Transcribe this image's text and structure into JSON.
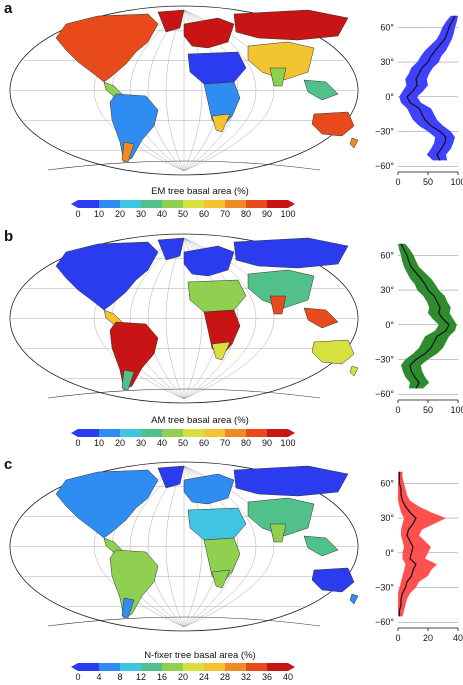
{
  "panels": [
    {
      "letter": "a",
      "colorbar_title": "EM tree basal area (%)",
      "colorbar_ticks": [
        "0",
        "10",
        "20",
        "30",
        "40",
        "50",
        "60",
        "70",
        "80",
        "90",
        "100"
      ],
      "profile_y_ticks": [
        "60°",
        "30°",
        "0°",
        "−30°",
        "−60°"
      ],
      "profile_x_ticks": [
        "0",
        "50",
        "100"
      ],
      "profile_fill_color": "#4040ff",
      "profile_xmax": 100,
      "profile_data": {
        "lat": [
          70,
          65,
          60,
          55,
          50,
          45,
          40,
          35,
          30,
          25,
          20,
          15,
          10,
          5,
          0,
          -5,
          -10,
          -15,
          -20,
          -25,
          -30,
          -35,
          -40,
          -45,
          -50,
          -55
        ],
        "mean": [
          95,
          90,
          85,
          82,
          78,
          70,
          62,
          55,
          50,
          40,
          35,
          30,
          32,
          25,
          15,
          20,
          35,
          40,
          45,
          55,
          70,
          80,
          78,
          72,
          65,
          70
        ],
        "low": [
          88,
          80,
          74,
          70,
          65,
          55,
          45,
          38,
          32,
          22,
          18,
          12,
          14,
          8,
          2,
          5,
          15,
          20,
          25,
          35,
          50,
          62,
          60,
          55,
          48,
          58
        ],
        "high": [
          100,
          98,
          95,
          93,
          90,
          85,
          80,
          72,
          68,
          58,
          52,
          48,
          50,
          42,
          32,
          38,
          55,
          60,
          65,
          75,
          88,
          95,
          92,
          88,
          80,
          82
        ]
      }
    },
    {
      "letter": "b",
      "colorbar_title": "AM tree basal area (%)",
      "colorbar_ticks": [
        "0",
        "10",
        "20",
        "30",
        "40",
        "50",
        "60",
        "70",
        "80",
        "90",
        "100"
      ],
      "profile_y_ticks": [
        "60°",
        "30°",
        "0°",
        "−30°",
        "−60°"
      ],
      "profile_x_ticks": [
        "0",
        "50",
        "100"
      ],
      "profile_fill_color": "#2e8b2e",
      "profile_xmax": 100,
      "profile_data": {
        "lat": [
          70,
          65,
          60,
          55,
          50,
          45,
          40,
          35,
          30,
          25,
          20,
          15,
          10,
          5,
          0,
          -5,
          -10,
          -15,
          -20,
          -25,
          -30,
          -35,
          -40,
          -45,
          -50,
          -55
        ],
        "mean": [
          5,
          10,
          15,
          18,
          22,
          30,
          38,
          45,
          50,
          60,
          65,
          70,
          68,
          75,
          85,
          80,
          65,
          60,
          55,
          45,
          30,
          20,
          22,
          28,
          35,
          30
        ],
        "low": [
          0,
          2,
          5,
          7,
          10,
          15,
          20,
          28,
          32,
          42,
          48,
          52,
          50,
          58,
          68,
          62,
          45,
          40,
          35,
          25,
          12,
          5,
          8,
          12,
          20,
          18
        ],
        "high": [
          12,
          20,
          26,
          30,
          35,
          45,
          55,
          62,
          68,
          78,
          82,
          88,
          86,
          92,
          98,
          95,
          85,
          80,
          75,
          65,
          50,
          38,
          40,
          45,
          52,
          42
        ]
      }
    },
    {
      "letter": "c",
      "colorbar_title": "N-fixer tree basal area (%)",
      "colorbar_ticks": [
        "0",
        "4",
        "8",
        "12",
        "16",
        "20",
        "24",
        "28",
        "32",
        "36",
        "40"
      ],
      "profile_y_ticks": [
        "60°",
        "30°",
        "0°",
        "−30°",
        "−60°"
      ],
      "profile_x_ticks": [
        "0",
        "20",
        "40"
      ],
      "profile_fill_color": "#ff5050",
      "profile_xmax": 40,
      "profile_data": {
        "lat": [
          70,
          65,
          60,
          55,
          50,
          45,
          40,
          35,
          30,
          25,
          20,
          15,
          10,
          5,
          0,
          -5,
          -10,
          -15,
          -20,
          -25,
          -30,
          -35,
          -40,
          -45,
          -50,
          -55
        ],
        "mean": [
          1,
          1,
          1,
          2,
          2,
          3,
          5,
          8,
          12,
          10,
          7,
          6,
          8,
          10,
          9,
          8,
          12,
          10,
          9,
          6,
          5,
          3,
          2,
          2,
          1,
          1
        ],
        "low": [
          0,
          0,
          0,
          0,
          0,
          0,
          1,
          2,
          4,
          3,
          2,
          2,
          3,
          4,
          3,
          3,
          5,
          4,
          3,
          2,
          1,
          0,
          0,
          0,
          0,
          0
        ],
        "high": [
          3,
          3,
          4,
          5,
          6,
          8,
          14,
          22,
          32,
          24,
          16,
          14,
          18,
          22,
          20,
          18,
          26,
          22,
          20,
          14,
          12,
          8,
          6,
          5,
          4,
          3
        ]
      }
    }
  ],
  "colormap": [
    "#2b3cf0",
    "#2f8cf0",
    "#3fc5e0",
    "#52c08a",
    "#8fd050",
    "#d8e040",
    "#f2c530",
    "#f08a25",
    "#e84a1c",
    "#c81414"
  ]
}
